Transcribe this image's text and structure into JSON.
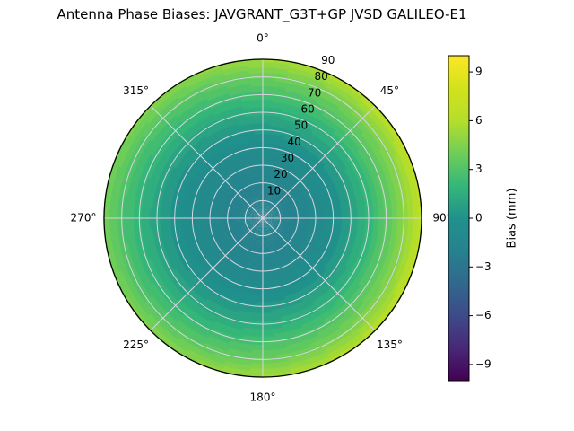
{
  "chart_data": {
    "type": "heatmap",
    "projection": "polar",
    "title": "Antenna Phase Biases: JAVGRANT_G3T+GP JVSD GALILEO-E1",
    "grid": true,
    "azimuth_ticks": [
      {
        "angle_deg": 0,
        "label": "0°"
      },
      {
        "angle_deg": 45,
        "label": "45°"
      },
      {
        "angle_deg": 90,
        "label": "90°"
      },
      {
        "angle_deg": 135,
        "label": "135°"
      },
      {
        "angle_deg": 180,
        "label": "180°"
      },
      {
        "angle_deg": 225,
        "label": "225°"
      },
      {
        "angle_deg": 270,
        "label": "270°"
      },
      {
        "angle_deg": 315,
        "label": "315°"
      }
    ],
    "radial_axis": {
      "min": 0,
      "max": 90,
      "label_angle_deg": 22.5
    },
    "radial_ticks": [
      {
        "value": 10,
        "label": "10"
      },
      {
        "value": 20,
        "label": "20"
      },
      {
        "value": 30,
        "label": "30"
      },
      {
        "value": 40,
        "label": "40"
      },
      {
        "value": 50,
        "label": "50"
      },
      {
        "value": 60,
        "label": "60"
      },
      {
        "value": 70,
        "label": "70"
      },
      {
        "value": 80,
        "label": "80"
      },
      {
        "value": 90,
        "label": "90"
      }
    ],
    "colorbar": {
      "label": "Bias (mm)",
      "vmin": -10,
      "vmax": 10,
      "tick_values": [
        9,
        6,
        3,
        0,
        -3,
        -6,
        -9
      ],
      "tick_labels": [
        "9",
        "6",
        "3",
        "0",
        "−3",
        "−6",
        "−9"
      ],
      "colormap": "viridis",
      "colormap_stops": [
        {
          "t": 0.0,
          "c": "#440154"
        },
        {
          "t": 0.1,
          "c": "#482878"
        },
        {
          "t": 0.2,
          "c": "#3e4a89"
        },
        {
          "t": 0.3,
          "c": "#31688e"
        },
        {
          "t": 0.4,
          "c": "#26828e"
        },
        {
          "t": 0.5,
          "c": "#21918c"
        },
        {
          "t": 0.6,
          "c": "#35b779"
        },
        {
          "t": 0.7,
          "c": "#6ece58"
        },
        {
          "t": 0.8,
          "c": "#b5de2b"
        },
        {
          "t": 0.9,
          "c": "#d2e21b"
        },
        {
          "t": 1.0,
          "c": "#fde725"
        }
      ]
    },
    "surface": {
      "description": "Phase bias (mm) vs zenith angle (radial, 0 center to 90 rim) and azimuth (clockwise from north). Roughly azimuthally symmetric: bluish-teal (~-2 mm) near zenith rising to green/yellow-green (~5-6.5 mm) at the horizon, slightly higher on the east (90°) side.",
      "radial_profile_zenith_deg": [
        0,
        10,
        20,
        30,
        40,
        50,
        60,
        70,
        80,
        85,
        90
      ],
      "radial_profile_bias_mm": [
        -2.3,
        -2.2,
        -1.8,
        -1.2,
        -0.5,
        0.4,
        1.4,
        2.6,
        3.8,
        4.6,
        5.4
      ],
      "azimuth_peak_deg": 90,
      "azimuth_amplitude_mm": 1.2,
      "contour_step_mm": 0.5
    },
    "style_colors": {
      "grid_line": "#d4d7e0",
      "outline": "#000000",
      "background": "#ffffff"
    }
  }
}
